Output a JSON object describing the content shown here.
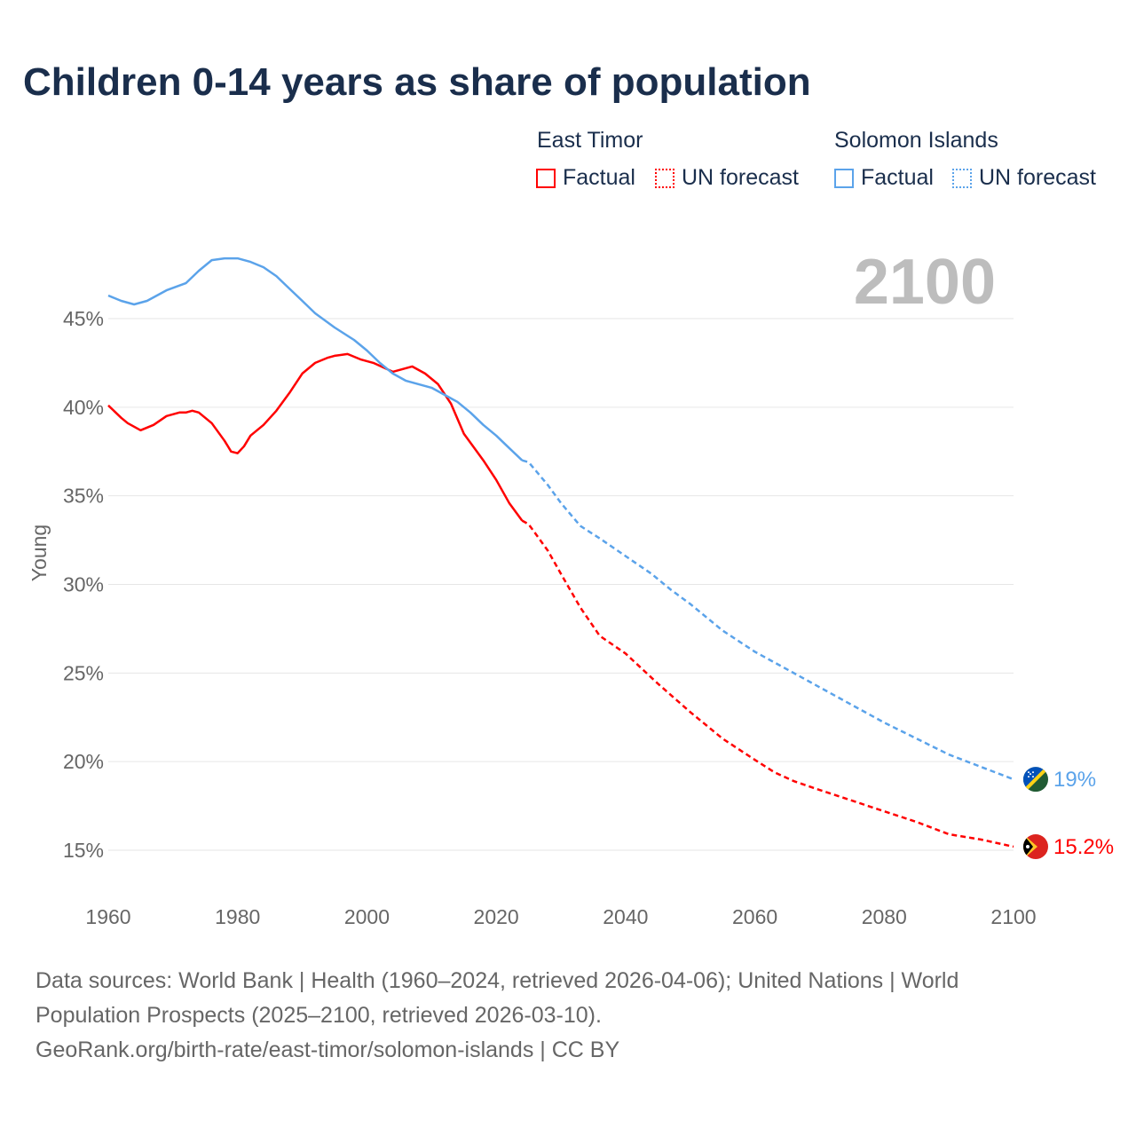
{
  "title": "Children 0-14 years as share of population",
  "legend": {
    "groups": [
      {
        "name": "East Timor",
        "factual": "Factual",
        "forecast": "UN forecast",
        "color": "#ff0000"
      },
      {
        "name": "Solomon Islands",
        "factual": "Factual",
        "forecast": "UN forecast",
        "color": "#5ba3ea"
      }
    ]
  },
  "year_label": "2100",
  "footer": {
    "line1": "Data sources: World Bank | Health (1960–2024, retrieved 2026-04-06); United Nations | World",
    "line2": "Population Prospects (2025–2100, retrieved 2026-03-10).",
    "line3": "GeoRank.org/birth-rate/east-timor/solomon-islands | CC BY"
  },
  "chart_data": {
    "type": "line",
    "title": "Children 0-14 years as share of population",
    "xlabel": "",
    "ylabel": "Young",
    "xlim": [
      1960,
      2100
    ],
    "ylim": [
      15,
      45
    ],
    "xticks": [
      "1960",
      "1980",
      "2000",
      "2020",
      "2040",
      "2060",
      "2080",
      "2100"
    ],
    "yticks": [
      "15%",
      "20%",
      "25%",
      "30%",
      "35%",
      "40%",
      "45%"
    ],
    "grid": true,
    "series": [
      {
        "name": "East Timor",
        "color": "#ff0000",
        "end_label": "15.2%",
        "factual": [
          [
            1960,
            40.1
          ],
          [
            1962,
            39.4
          ],
          [
            1963,
            39.1
          ],
          [
            1965,
            38.7
          ],
          [
            1967,
            39.0
          ],
          [
            1969,
            39.5
          ],
          [
            1971,
            39.7
          ],
          [
            1972,
            39.7
          ],
          [
            1973,
            39.8
          ],
          [
            1974,
            39.7
          ],
          [
            1976,
            39.1
          ],
          [
            1978,
            38.1
          ],
          [
            1979,
            37.5
          ],
          [
            1980,
            37.4
          ],
          [
            1981,
            37.8
          ],
          [
            1982,
            38.4
          ],
          [
            1984,
            39.0
          ],
          [
            1986,
            39.8
          ],
          [
            1988,
            40.8
          ],
          [
            1990,
            41.9
          ],
          [
            1992,
            42.5
          ],
          [
            1994,
            42.8
          ],
          [
            1995,
            42.9
          ],
          [
            1997,
            43.0
          ],
          [
            1999,
            42.7
          ],
          [
            2001,
            42.5
          ],
          [
            2004,
            42.0
          ],
          [
            2007,
            42.3
          ],
          [
            2009,
            41.9
          ],
          [
            2011,
            41.3
          ],
          [
            2013,
            40.2
          ],
          [
            2015,
            38.5
          ],
          [
            2018,
            37.0
          ],
          [
            2020,
            35.9
          ],
          [
            2022,
            34.6
          ],
          [
            2024,
            33.6
          ]
        ],
        "forecast": [
          [
            2024,
            33.6
          ],
          [
            2025,
            33.4
          ],
          [
            2028,
            31.9
          ],
          [
            2030,
            30.6
          ],
          [
            2033,
            28.7
          ],
          [
            2036,
            27.1
          ],
          [
            2040,
            26.1
          ],
          [
            2045,
            24.4
          ],
          [
            2050,
            22.8
          ],
          [
            2055,
            21.3
          ],
          [
            2060,
            20.1
          ],
          [
            2063,
            19.4
          ],
          [
            2066,
            18.9
          ],
          [
            2070,
            18.4
          ],
          [
            2075,
            17.8
          ],
          [
            2080,
            17.2
          ],
          [
            2085,
            16.6
          ],
          [
            2090,
            15.9
          ],
          [
            2095,
            15.6
          ],
          [
            2100,
            15.2
          ]
        ]
      },
      {
        "name": "Solomon Islands",
        "color": "#5ba3ea",
        "end_label": "19%",
        "factual": [
          [
            1960,
            46.3
          ],
          [
            1962,
            46.0
          ],
          [
            1964,
            45.8
          ],
          [
            1966,
            46.0
          ],
          [
            1969,
            46.6
          ],
          [
            1972,
            47.0
          ],
          [
            1974,
            47.7
          ],
          [
            1976,
            48.3
          ],
          [
            1978,
            48.4
          ],
          [
            1980,
            48.4
          ],
          [
            1982,
            48.2
          ],
          [
            1984,
            47.9
          ],
          [
            1986,
            47.4
          ],
          [
            1988,
            46.7
          ],
          [
            1990,
            46.0
          ],
          [
            1992,
            45.3
          ],
          [
            1995,
            44.5
          ],
          [
            1998,
            43.8
          ],
          [
            2000,
            43.2
          ],
          [
            2002,
            42.5
          ],
          [
            2004,
            41.9
          ],
          [
            2006,
            41.5
          ],
          [
            2008,
            41.3
          ],
          [
            2010,
            41.1
          ],
          [
            2012,
            40.7
          ],
          [
            2014,
            40.3
          ],
          [
            2016,
            39.7
          ],
          [
            2018,
            39.0
          ],
          [
            2020,
            38.4
          ],
          [
            2022,
            37.7
          ],
          [
            2024,
            37.0
          ]
        ],
        "forecast": [
          [
            2024,
            37.0
          ],
          [
            2025,
            36.9
          ],
          [
            2028,
            35.6
          ],
          [
            2030,
            34.6
          ],
          [
            2033,
            33.3
          ],
          [
            2036,
            32.6
          ],
          [
            2040,
            31.6
          ],
          [
            2044,
            30.6
          ],
          [
            2047,
            29.7
          ],
          [
            2050,
            28.9
          ],
          [
            2055,
            27.4
          ],
          [
            2060,
            26.2
          ],
          [
            2065,
            25.2
          ],
          [
            2070,
            24.2
          ],
          [
            2075,
            23.2
          ],
          [
            2080,
            22.2
          ],
          [
            2085,
            21.3
          ],
          [
            2090,
            20.4
          ],
          [
            2095,
            19.7
          ],
          [
            2100,
            19.0
          ]
        ]
      }
    ]
  }
}
